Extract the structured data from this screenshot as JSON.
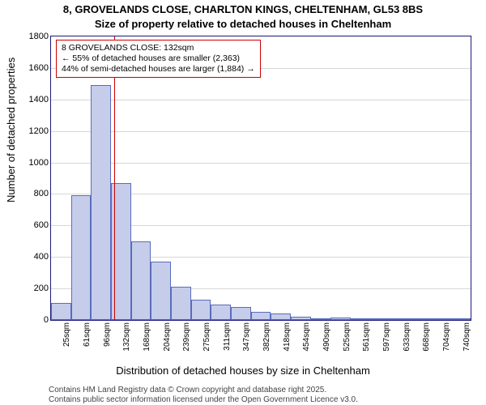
{
  "title": {
    "line1": "8, GROVELANDS CLOSE, CHARLTON KINGS, CHELTENHAM, GL53 8BS",
    "line2": "Size of property relative to detached houses in Cheltenham"
  },
  "ylabel": "Number of detached properties",
  "xlabel": "Distribution of detached houses by size in Cheltenham",
  "footer": {
    "l1": "Contains HM Land Registry data © Crown copyright and database right 2025.",
    "l2": "Contains public sector information licensed under the Open Government Licence v3.0."
  },
  "annot": {
    "l1": "8 GROVELANDS CLOSE: 132sqm",
    "l2": "← 55% of detached houses are smaller (2,363)",
    "l3": "44% of semi-detached houses are larger (1,884) →"
  },
  "chart": {
    "type": "histogram",
    "ylim": [
      0,
      1800
    ],
    "ytick_step": 200,
    "categories": [
      "25sqm",
      "61sqm",
      "96sqm",
      "132sqm",
      "168sqm",
      "204sqm",
      "239sqm",
      "275sqm",
      "311sqm",
      "347sqm",
      "382sqm",
      "418sqm",
      "454sqm",
      "490sqm",
      "525sqm",
      "561sqm",
      "597sqm",
      "633sqm",
      "668sqm",
      "704sqm",
      "740sqm"
    ],
    "values": [
      110,
      790,
      1490,
      870,
      500,
      370,
      210,
      130,
      100,
      80,
      50,
      40,
      20,
      10,
      15,
      10,
      10,
      5,
      10,
      5,
      5
    ],
    "bar_fill": "#c5cdea",
    "bar_stroke": "#5a6bbf",
    "border_color": "#1a1a7a",
    "grid_color": "#d7d7d7",
    "background": "#ffffff",
    "marker": {
      "x": 132,
      "color": "#cc0000"
    },
    "annot_box": {
      "border": "#cc0000",
      "bg": "#ffffff"
    },
    "xrange": [
      25,
      740
    ],
    "title_fontsize": 13,
    "label_fontsize": 13,
    "tick_fontsize": 11
  }
}
